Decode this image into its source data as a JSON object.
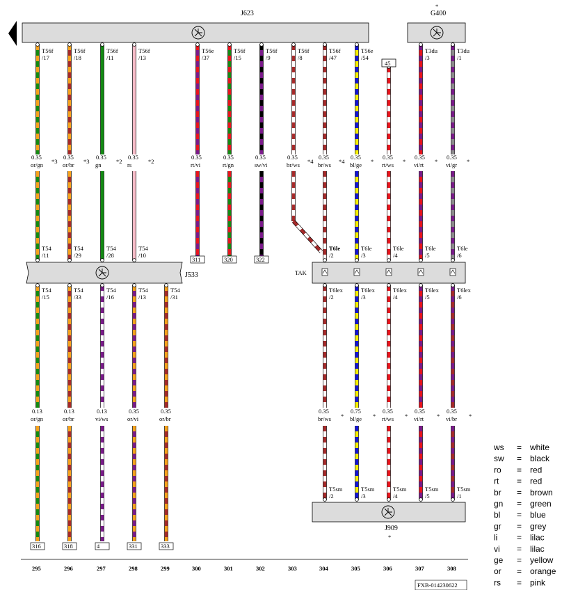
{
  "components": {
    "j623": {
      "label": "J623"
    },
    "g400": {
      "label": "G400",
      "star": "*"
    },
    "j533": {
      "label": "J533"
    },
    "tak": {
      "label": "TAK"
    },
    "j909": {
      "label": "J909",
      "star": "*"
    }
  },
  "fuse_ref": "45",
  "doc_id": "FXB-014230622",
  "columns": [
    "295",
    "296",
    "297",
    "298",
    "299",
    "300",
    "301",
    "302",
    "303",
    "304",
    "305",
    "306",
    "307",
    "308"
  ],
  "upper_wires": [
    {
      "pin": "T56f",
      "num": "/17",
      "size": "0.35",
      "color": "or/gn",
      "note": "*3"
    },
    {
      "pin": "T56f",
      "num": "/18",
      "size": "0.35",
      "color": "or/br",
      "note": "*3"
    },
    {
      "pin": "T56f",
      "num": "/11",
      "size": "0.35",
      "color": "gn",
      "note": "*2"
    },
    {
      "pin": "T56f",
      "num": "/13",
      "size": "0.35",
      "color": "rs",
      "note": "*2"
    },
    {
      "pin": "T56e",
      "num": "/37",
      "size": "0.35",
      "color": "rt/vi",
      "note": "",
      "ref": "311"
    },
    {
      "pin": "T56f",
      "num": "/15",
      "size": "0.35",
      "color": "rt/gn",
      "note": "",
      "ref": "320"
    },
    {
      "pin": "T56f",
      "num": "/9",
      "size": "0.35",
      "color": "sw/vi",
      "note": "",
      "ref": "322"
    },
    {
      "pin": "T56f",
      "num": "/8",
      "size": "0.35",
      "color": "br/ws",
      "note": "*4"
    },
    {
      "pin": "T56f",
      "num": "/47",
      "size": "0.35",
      "color": "br/ws",
      "note": "*4"
    },
    {
      "pin": "T56e",
      "num": "/54",
      "size": "0.35",
      "color": "bl/ge",
      "note": "*"
    },
    {
      "pin": "",
      "num": "",
      "size": "0.35",
      "color": "rt/ws",
      "note": "*"
    },
    {
      "pin": "T3du",
      "num": "/3",
      "size": "0.35",
      "color": "vi/rt",
      "note": "*"
    },
    {
      "pin": "T3du",
      "num": "/1",
      "size": "0.35",
      "color": "vi/gr",
      "note": "*"
    }
  ],
  "j533_top_pins": [
    {
      "pin": "T54",
      "num": "/11"
    },
    {
      "pin": "T54",
      "num": "/29"
    },
    {
      "pin": "T54",
      "num": "/28"
    },
    {
      "pin": "T54",
      "num": "/10"
    }
  ],
  "tak_top_pins": [
    {
      "pin": "T6le",
      "num": "/2"
    },
    {
      "pin": "T6le",
      "num": "/3"
    },
    {
      "pin": "T6le",
      "num": "/4"
    },
    {
      "pin": "T6le",
      "num": "/5"
    },
    {
      "pin": "T6le",
      "num": "/6"
    }
  ],
  "lower_left": [
    {
      "pin": "T54",
      "num": "/15",
      "size": "0.13",
      "color": "or/gn",
      "ref": "316"
    },
    {
      "pin": "T54",
      "num": "/33",
      "size": "0.13",
      "color": "or/br",
      "ref": "318"
    },
    {
      "pin": "T54",
      "num": "/16",
      "size": "0.13",
      "color": "vi/ws",
      "ref": "4"
    },
    {
      "pin": "T54",
      "num": "/13",
      "size": "0.35",
      "color": "or/vi",
      "ref": "331"
    },
    {
      "pin": "T54",
      "num": "/31",
      "size": "0.35",
      "color": "or/br",
      "ref": "333"
    }
  ],
  "lower_right": [
    {
      "pin": "T6lex",
      "num": "/2",
      "size": "0.35",
      "color": "br/ws",
      "note": "*",
      "bot_pin": "T5sm",
      "bot_num": "/2"
    },
    {
      "pin": "T6lex",
      "num": "/3",
      "size": "0.75",
      "color": "bl/ge",
      "note": "*",
      "bot_pin": "T5sm",
      "bot_num": "/3"
    },
    {
      "pin": "T6lex",
      "num": "/4",
      "size": "0.35",
      "color": "rt/ws",
      "note": "*",
      "bot_pin": "T5sm",
      "bot_num": "/4"
    },
    {
      "pin": "T6lex",
      "num": "/5",
      "size": "0.35",
      "color": "vi/rt",
      "note": "*",
      "bot_pin": "T5sm",
      "bot_num": "/5"
    },
    {
      "pin": "T6lex",
      "num": "/6",
      "size": "0.35",
      "color": "vi/br",
      "note": "*",
      "bot_pin": "T5sm",
      "bot_num": "/1"
    }
  ],
  "legend": [
    {
      "code": "ws",
      "eq": "=",
      "name": "white"
    },
    {
      "code": "sw",
      "eq": "=",
      "name": "black"
    },
    {
      "code": "ro",
      "eq": "=",
      "name": "red"
    },
    {
      "code": "rt",
      "eq": "=",
      "name": "red"
    },
    {
      "code": "br",
      "eq": "=",
      "name": "brown"
    },
    {
      "code": "gn",
      "eq": "=",
      "name": "green"
    },
    {
      "code": "bl",
      "eq": "=",
      "name": "blue"
    },
    {
      "code": "gr",
      "eq": "=",
      "name": "grey"
    },
    {
      "code": "li",
      "eq": "=",
      "name": "lilac"
    },
    {
      "code": "vi",
      "eq": "=",
      "name": "lilac"
    },
    {
      "code": "ge",
      "eq": "=",
      "name": "yellow"
    },
    {
      "code": "or",
      "eq": "=",
      "name": "orange"
    },
    {
      "code": "rs",
      "eq": "=",
      "name": "pink"
    }
  ],
  "wire_colors": {
    "ws": "#ffffff",
    "sw": "#000000",
    "rt": "#e8141c",
    "br": "#a52a2a",
    "gn": "#138a13",
    "bl": "#1414d6",
    "gr": "#8c8c8c",
    "vi": "#7a1a8a",
    "ge": "#f7f000",
    "or": "#f7a21b",
    "rs": "#f8bcc8"
  }
}
